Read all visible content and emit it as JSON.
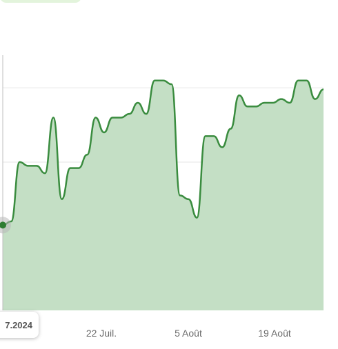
{
  "tooltip": {
    "date_text": "7.2024"
  },
  "colors": {
    "line": "#3a8c3f",
    "fill": "#c4dfc5",
    "grid": "#e4e4e4",
    "marker": "#2e7d32"
  },
  "chart_data": {
    "type": "area",
    "title": "",
    "xlabel": "",
    "ylabel": "",
    "x_tick_labels": [
      "22 Juil.",
      "5 Août",
      "19 Août"
    ],
    "y_tick_labels": [],
    "grid": "horizontal",
    "ylim": [
      0,
      4
    ],
    "series": [
      {
        "values": [
          1.15,
          1.2,
          2.0,
          1.95,
          1.95,
          1.85,
          2.6,
          1.5,
          1.92,
          1.92,
          2.1,
          2.6,
          2.4,
          2.6,
          2.6,
          2.65,
          2.8,
          2.65,
          3.1,
          3.1,
          3.05,
          1.55,
          1.5,
          1.25,
          2.35,
          2.35,
          2.2,
          2.45,
          2.9,
          2.75,
          2.75,
          2.8,
          2.8,
          2.85,
          2.8,
          3.1,
          3.1,
          2.85,
          2.98
        ]
      }
    ],
    "highlighted_point_index": 0
  }
}
